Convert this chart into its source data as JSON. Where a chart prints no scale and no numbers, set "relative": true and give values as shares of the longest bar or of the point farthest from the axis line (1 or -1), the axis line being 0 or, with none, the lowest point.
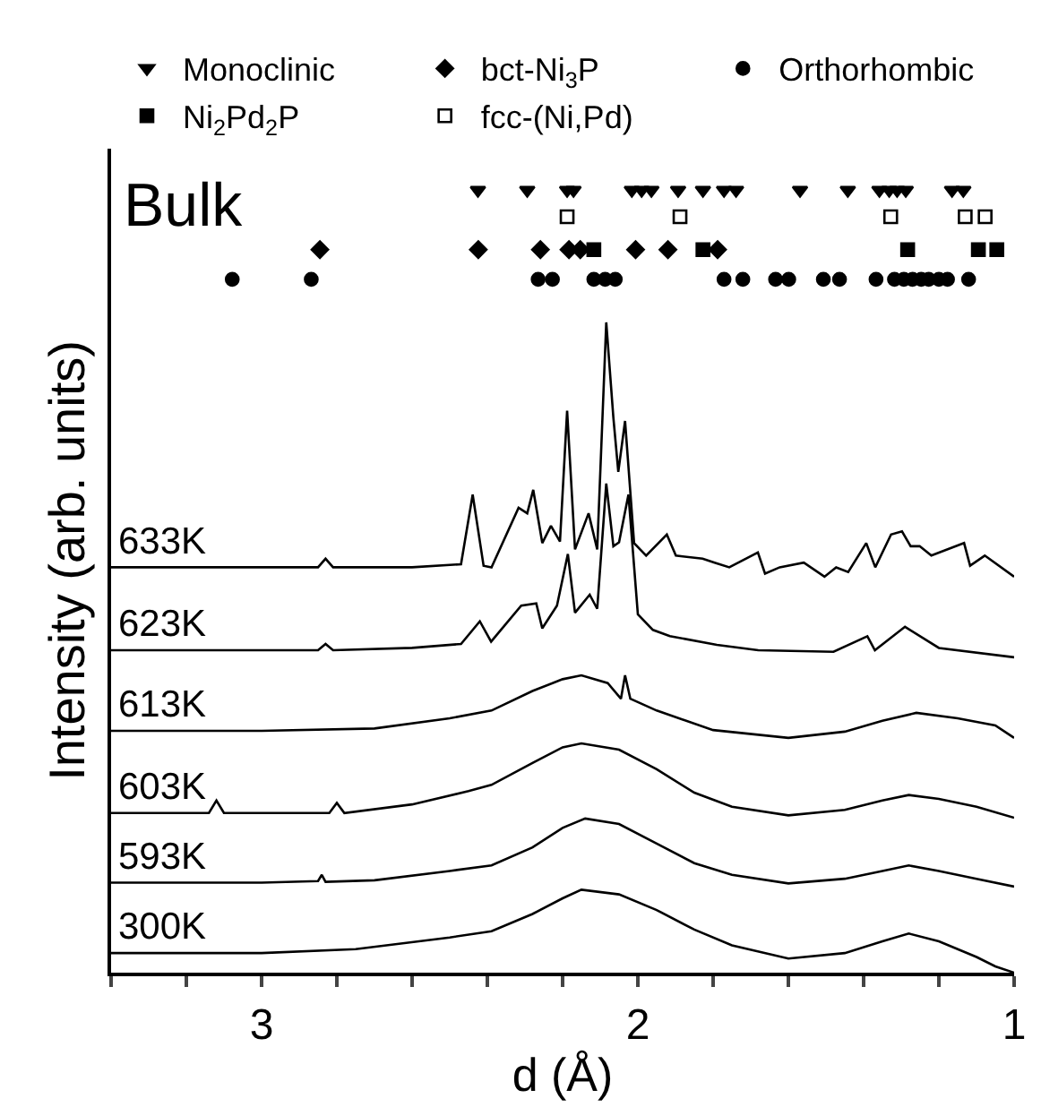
{
  "chart_data": {
    "type": "line",
    "relative": true,
    "xlabel": "d (Å)",
    "ylabel": "Intensity (arb. units)",
    "xlim": [
      3.4,
      1
    ],
    "xticks": [
      {
        "value": 3.4,
        "label": null
      },
      {
        "value": 3.2,
        "label": null
      },
      3,
      {
        "value": 2.8,
        "label": null
      },
      {
        "value": 2.6,
        "label": null
      },
      {
        "value": 2.4,
        "label": null
      },
      {
        "value": 2.2,
        "label": null
      },
      2,
      {
        "value": 1.8,
        "label": null
      },
      {
        "value": 1.6,
        "label": null
      },
      {
        "value": 1.4,
        "label": null
      },
      {
        "value": 1.2,
        "label": null
      },
      1
    ],
    "tick_labels": "x",
    "legend": "top",
    "annotations": [
      "Bulk"
    ],
    "series": [
      {
        "name": "Monoclinic",
        "type": "scatter",
        "marker": "triangle",
        "color": "#000000",
        "x": [
          2.425,
          2.294,
          2.188,
          2.171,
          2.016,
          1.99,
          1.964,
          1.893,
          1.827,
          1.771,
          1.739,
          1.569,
          1.442,
          1.358,
          1.332,
          1.311,
          1.288,
          1.165,
          1.135
        ],
        "values": [
          1,
          1,
          1,
          1,
          1,
          1,
          1,
          1,
          1,
          1,
          1,
          1,
          1,
          1,
          1,
          1,
          1,
          1,
          1
        ]
      },
      {
        "name": "bct-Ni$_{3}$P",
        "type": "scatter",
        "marker": "diamond",
        "color": "#000000",
        "x": [
          2.845,
          2.424,
          2.259,
          2.183,
          2.153,
          2.006,
          1.92,
          1.788
        ],
        "values": [
          0.924,
          0.924,
          0.924,
          0.924,
          0.924,
          0.924,
          0.924,
          0.924
        ]
      },
      {
        "name": "Orthorhombic",
        "type": "scatter",
        "marker": "circle",
        "color": "#000000",
        "x": [
          3.078,
          2.868,
          2.265,
          2.227,
          2.117,
          2.087,
          2.06,
          1.771,
          1.721,
          1.634,
          1.599,
          1.507,
          1.464,
          1.367,
          1.318,
          1.293,
          1.27,
          1.247,
          1.227,
          1.2,
          1.177,
          1.121
        ],
        "values": [
          0.886,
          0.886,
          0.886,
          0.886,
          0.886,
          0.886,
          0.886,
          0.886,
          0.886,
          0.886,
          0.886,
          0.886,
          0.886,
          0.886,
          0.886,
          0.886,
          0.886,
          0.886,
          0.886,
          0.886,
          0.886,
          0.886
        ]
      },
      {
        "name": "Ni$_{2}$Pd$_{2}$P",
        "type": "scatter",
        "marker": "square",
        "color": "#000000",
        "x": [
          2.117,
          1.827,
          1.283,
          1.095,
          1.046
        ],
        "values": [
          0.924,
          0.924,
          0.924,
          0.924,
          0.924
        ]
      },
      {
        "name": "fcc-(Ni,Pd)",
        "type": "scatter",
        "marker": "square-open",
        "color": "#000000",
        "x": [
          2.188,
          1.888,
          1.328,
          1.13,
          1.077
        ],
        "values": [
          0.966,
          0.966,
          0.966,
          0.966,
          0.966
        ]
      },
      {
        "name": "633K",
        "color": "#000000",
        "x": [
          3.4,
          3.0,
          2.85,
          2.83,
          2.81,
          2.6,
          2.47,
          2.439,
          2.41,
          2.389,
          2.317,
          2.294,
          2.278,
          2.254,
          2.231,
          2.207,
          2.188,
          2.167,
          2.131,
          2.108,
          2.084,
          2.065,
          2.052,
          2.034,
          2.01,
          1.978,
          1.923,
          1.899,
          1.828,
          1.796,
          1.757,
          1.681,
          1.662,
          1.623,
          1.559,
          1.504,
          1.473,
          1.441,
          1.393,
          1.369,
          1.327,
          1.298,
          1.275,
          1.251,
          1.22,
          1.133,
          1.117,
          1.078,
          1.0
        ],
        "values": [
          0.518,
          0.518,
          0.518,
          0.529,
          0.518,
          0.518,
          0.522,
          0.611,
          0.52,
          0.518,
          0.594,
          0.587,
          0.617,
          0.549,
          0.571,
          0.551,
          0.718,
          0.541,
          0.587,
          0.541,
          0.831,
          0.709,
          0.64,
          0.705,
          0.549,
          0.533,
          0.56,
          0.533,
          0.529,
          0.524,
          0.518,
          0.537,
          0.51,
          0.518,
          0.524,
          0.506,
          0.518,
          0.512,
          0.549,
          0.518,
          0.56,
          0.564,
          0.545,
          0.545,
          0.533,
          0.549,
          0.52,
          0.533,
          0.506
        ]
      },
      {
        "name": "623K",
        "color": "#000000",
        "x": [
          3.4,
          3.0,
          2.85,
          2.83,
          2.81,
          2.6,
          2.47,
          2.42,
          2.39,
          2.31,
          2.27,
          2.254,
          2.215,
          2.186,
          2.167,
          2.128,
          2.108,
          2.084,
          2.065,
          2.05,
          2.025,
          2.0,
          1.96,
          1.915,
          1.79,
          1.68,
          1.48,
          1.39,
          1.37,
          1.29,
          1.2,
          1.0
        ],
        "values": [
          0.412,
          0.412,
          0.412,
          0.42,
          0.412,
          0.415,
          0.42,
          0.449,
          0.423,
          0.469,
          0.472,
          0.44,
          0.469,
          0.535,
          0.46,
          0.483,
          0.465,
          0.625,
          0.545,
          0.55,
          0.611,
          0.458,
          0.438,
          0.43,
          0.419,
          0.412,
          0.41,
          0.43,
          0.412,
          0.442,
          0.415,
          0.403
        ]
      },
      {
        "name": "613K",
        "color": "#000000",
        "x": [
          3.4,
          3.0,
          2.7,
          2.5,
          2.389,
          2.28,
          2.2,
          2.15,
          2.08,
          2.045,
          2.034,
          2.02,
          1.95,
          1.8,
          1.6,
          1.45,
          1.35,
          1.26,
          1.15,
          1.05,
          1.0
        ],
        "values": [
          0.309,
          0.309,
          0.312,
          0.325,
          0.335,
          0.36,
          0.375,
          0.38,
          0.37,
          0.35,
          0.38,
          0.35,
          0.335,
          0.31,
          0.3,
          0.308,
          0.322,
          0.332,
          0.325,
          0.316,
          0.3
        ]
      },
      {
        "name": "603K",
        "color": "#000000",
        "x": [
          3.4,
          3.14,
          3.12,
          3.1,
          2.82,
          2.8,
          2.78,
          2.6,
          2.45,
          2.389,
          2.28,
          2.2,
          2.15,
          2.05,
          1.95,
          1.85,
          1.75,
          1.6,
          1.45,
          1.35,
          1.28,
          1.2,
          1.1,
          1.0
        ],
        "values": [
          0.204,
          0.204,
          0.22,
          0.204,
          0.204,
          0.217,
          0.204,
          0.215,
          0.232,
          0.24,
          0.268,
          0.288,
          0.293,
          0.285,
          0.26,
          0.23,
          0.212,
          0.201,
          0.208,
          0.22,
          0.227,
          0.222,
          0.212,
          0.198
        ]
      },
      {
        "name": "593K",
        "color": "#000000",
        "x": [
          3.4,
          3.0,
          2.85,
          2.84,
          2.83,
          2.7,
          2.5,
          2.389,
          2.28,
          2.2,
          2.14,
          2.05,
          1.95,
          1.85,
          1.75,
          1.6,
          1.45,
          1.35,
          1.28,
          1.2,
          1.1,
          1.0
        ],
        "values": [
          0.115,
          0.115,
          0.117,
          0.125,
          0.116,
          0.118,
          0.13,
          0.137,
          0.16,
          0.185,
          0.197,
          0.19,
          0.165,
          0.14,
          0.125,
          0.114,
          0.12,
          0.13,
          0.137,
          0.13,
          0.12,
          0.11
        ]
      },
      {
        "name": "300K",
        "color": "#000000",
        "x": [
          3.4,
          3.0,
          2.75,
          2.5,
          2.389,
          2.28,
          2.2,
          2.15,
          2.05,
          1.95,
          1.85,
          1.75,
          1.6,
          1.45,
          1.35,
          1.28,
          1.2,
          1.1,
          1.05,
          1.0
        ],
        "values": [
          0.025,
          0.025,
          0.03,
          0.045,
          0.053,
          0.075,
          0.095,
          0.106,
          0.1,
          0.08,
          0.055,
          0.035,
          0.018,
          0.025,
          0.04,
          0.05,
          0.04,
          0.02,
          0.008,
          0.0
        ]
      }
    ]
  }
}
